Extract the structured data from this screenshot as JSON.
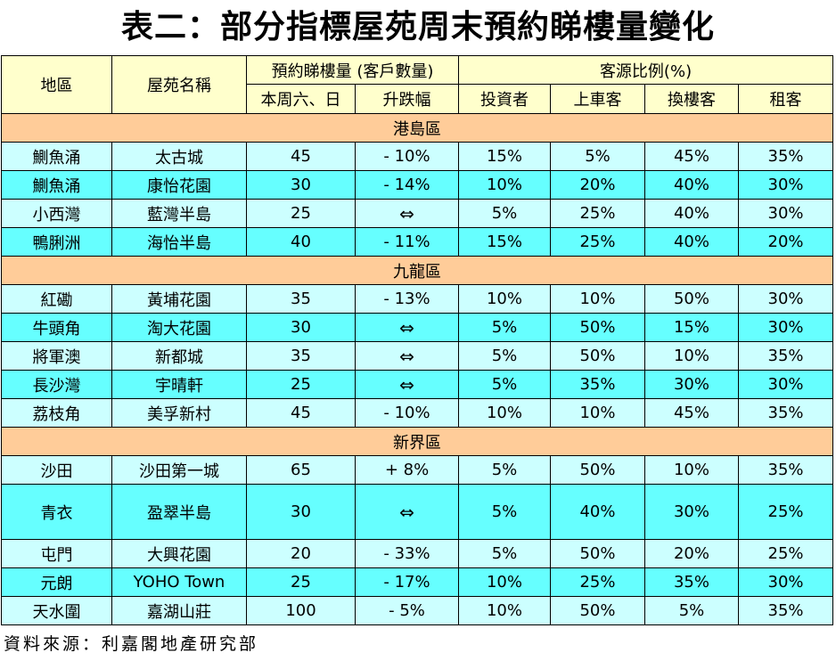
{
  "title": "表二：部分指標屋苑周末預約睇樓量變化",
  "headers": {
    "district": "地區",
    "estate": "屋苑名稱",
    "viewings_group": "預約睇樓量 (客戶數量)",
    "viewings_weekend": "本周六、日",
    "change": "升跌幅",
    "source_group": "客源比例(%)",
    "investor": "投資者",
    "first_time": "上車客",
    "upgrader": "換樓客",
    "renter": "租客"
  },
  "regions": [
    {
      "name": "港島區",
      "rows": [
        {
          "district": "鰂魚涌",
          "estate": "太古城",
          "viewings": "45",
          "change": "- 10%",
          "investor": "15%",
          "first_time": "5%",
          "upgrader": "45%",
          "renter": "35%"
        },
        {
          "district": "鰂魚涌",
          "estate": "康怡花園",
          "viewings": "30",
          "change": "- 14%",
          "investor": "10%",
          "first_time": "20%",
          "upgrader": "40%",
          "renter": "30%"
        },
        {
          "district": "小西灣",
          "estate": "藍灣半島",
          "viewings": "25",
          "change": "⇔",
          "investor": "5%",
          "first_time": "25%",
          "upgrader": "40%",
          "renter": "30%"
        },
        {
          "district": "鴨脷洲",
          "estate": "海怡半島",
          "viewings": "40",
          "change": "- 11%",
          "investor": "15%",
          "first_time": "25%",
          "upgrader": "40%",
          "renter": "20%"
        }
      ]
    },
    {
      "name": "九龍區",
      "rows": [
        {
          "district": "紅磡",
          "estate": "黃埔花園",
          "viewings": "35",
          "change": "- 13%",
          "investor": "10%",
          "first_time": "10%",
          "upgrader": "50%",
          "renter": "30%"
        },
        {
          "district": "牛頭角",
          "estate": "淘大花園",
          "viewings": "30",
          "change": "⇔",
          "investor": "5%",
          "first_time": "50%",
          "upgrader": "15%",
          "renter": "30%"
        },
        {
          "district": "將軍澳",
          "estate": "新都城",
          "viewings": "35",
          "change": "⇔",
          "investor": "5%",
          "first_time": "50%",
          "upgrader": "10%",
          "renter": "35%"
        },
        {
          "district": "長沙灣",
          "estate": "宇晴軒",
          "viewings": "25",
          "change": "⇔",
          "investor": "5%",
          "first_time": "35%",
          "upgrader": "30%",
          "renter": "30%"
        },
        {
          "district": "荔枝角",
          "estate": "美孚新村",
          "viewings": "45",
          "change": "- 10%",
          "investor": "10%",
          "first_time": "10%",
          "upgrader": "45%",
          "renter": "35%"
        }
      ]
    },
    {
      "name": "新界區",
      "rows": [
        {
          "district": "沙田",
          "estate": "沙田第一城",
          "viewings": "65",
          "change": "+ 8%",
          "investor": "5%",
          "first_time": "50%",
          "upgrader": "10%",
          "renter": "35%"
        },
        {
          "district": "青衣",
          "estate": "盈翠半島",
          "viewings": "30",
          "change": "⇔",
          "investor": "5%",
          "first_time": "40%",
          "upgrader": "30%",
          "renter": "25%"
        },
        {
          "district": "屯門",
          "estate": "大興花園",
          "viewings": "20",
          "change": "- 33%",
          "investor": "5%",
          "first_time": "50%",
          "upgrader": "20%",
          "renter": "25%"
        },
        {
          "district": "元朗",
          "estate": "YOHO Town",
          "viewings": "25",
          "change": "- 17%",
          "investor": "10%",
          "first_time": "25%",
          "upgrader": "35%",
          "renter": "30%"
        },
        {
          "district": "天水圍",
          "estate": "嘉湖山莊",
          "viewings": "100",
          "change": "- 5%",
          "investor": "10%",
          "first_time": "50%",
          "upgrader": "5%",
          "renter": "35%"
        }
      ]
    }
  ],
  "footer": "資料來源：利嘉閣地產研究部",
  "colors": {
    "header_bg": "#ffffcc",
    "region_bg": "#ffcc99",
    "row_light": "#ccffff",
    "row_dark": "#66ffff"
  }
}
